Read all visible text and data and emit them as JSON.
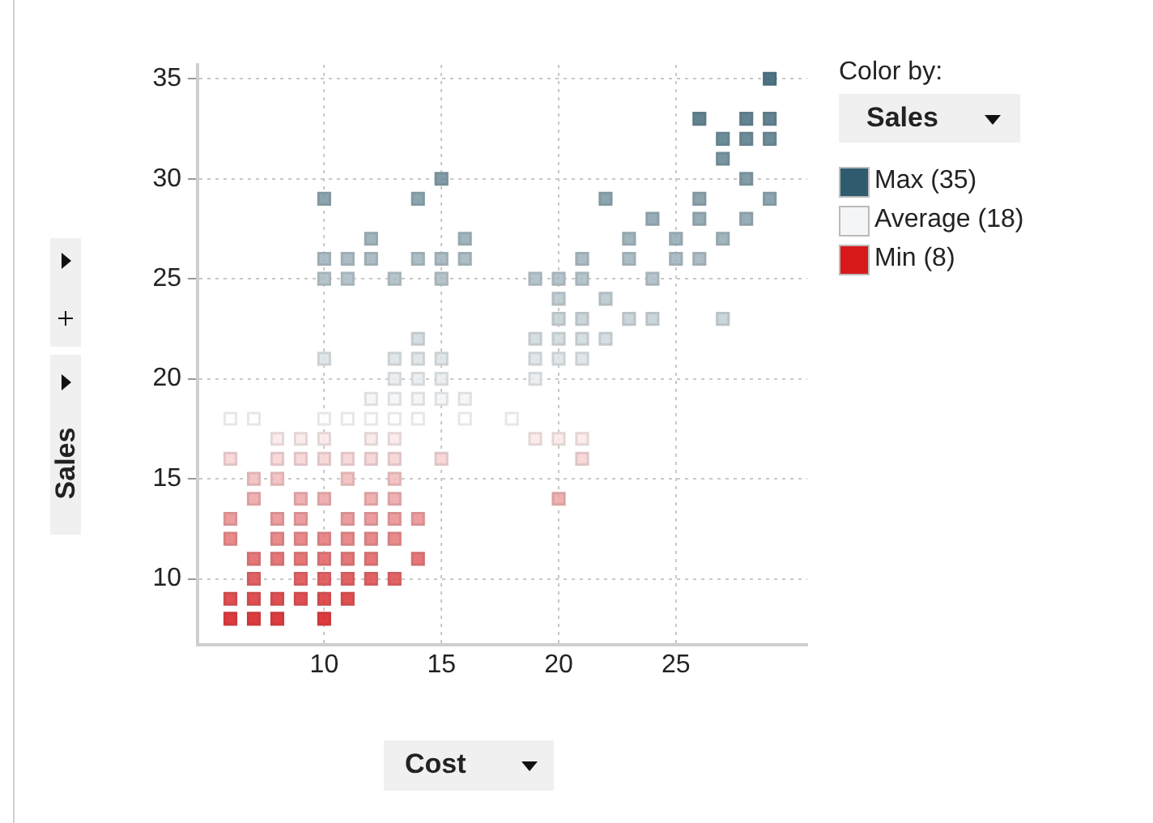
{
  "chart_data": {
    "type": "scatter",
    "xlabel": "Cost",
    "ylabel": "Sales",
    "legend_title": "Color by:",
    "clabel": "Sales",
    "marker": "square",
    "grid": true,
    "annotations": [
      "Max (35)",
      "Average (18)",
      "Min (8)"
    ],
    "xlim": [
      4.6,
      30.6
    ],
    "xticks": [
      10,
      15,
      20,
      25
    ],
    "ylim": [
      6.7,
      35.7
    ],
    "yticks": [
      10,
      15,
      20,
      25,
      30,
      35
    ],
    "x": [
      29,
      26,
      28,
      29,
      27,
      28,
      29,
      27,
      15,
      28,
      10,
      14,
      22,
      26,
      29,
      24,
      26,
      28,
      12,
      16,
      23,
      25,
      27,
      10,
      11,
      12,
      14,
      15,
      16,
      21,
      23,
      25,
      26,
      10,
      11,
      13,
      15,
      19,
      20,
      21,
      24,
      20,
      22,
      20,
      21,
      23,
      24,
      27,
      14,
      19,
      20,
      21,
      22,
      10,
      13,
      14,
      15,
      19,
      20,
      21,
      13,
      14,
      15,
      19,
      12,
      13,
      14,
      15,
      16,
      6,
      7,
      10,
      11,
      12,
      13,
      14,
      16,
      18,
      8,
      9,
      10,
      12,
      13,
      19,
      20,
      21,
      6,
      8,
      9,
      10,
      11,
      12,
      13,
      15,
      21,
      7,
      8,
      11,
      13,
      7,
      9,
      10,
      12,
      13,
      20,
      6,
      8,
      9,
      11,
      12,
      13,
      14,
      6,
      8,
      9,
      10,
      11,
      12,
      13,
      7,
      8,
      9,
      10,
      11,
      12,
      14,
      7,
      9,
      10,
      11,
      12,
      13,
      6,
      7,
      8,
      9,
      10,
      11,
      6,
      7,
      8,
      10
    ],
    "values": [
      35,
      33,
      33,
      33,
      32,
      32,
      32,
      31,
      30,
      30,
      29,
      29,
      29,
      29,
      29,
      28,
      28,
      28,
      27,
      27,
      27,
      27,
      27,
      26,
      26,
      26,
      26,
      26,
      26,
      26,
      26,
      26,
      26,
      25,
      25,
      25,
      25,
      25,
      25,
      25,
      25,
      24,
      24,
      23,
      23,
      23,
      23,
      23,
      22,
      22,
      22,
      22,
      22,
      21,
      21,
      21,
      21,
      21,
      21,
      21,
      20,
      20,
      20,
      20,
      19,
      19,
      19,
      19,
      19,
      18,
      18,
      18,
      18,
      18,
      18,
      18,
      18,
      18,
      17,
      17,
      17,
      17,
      17,
      17,
      17,
      17,
      16,
      16,
      16,
      16,
      16,
      16,
      16,
      16,
      16,
      15,
      15,
      15,
      15,
      14,
      14,
      14,
      14,
      14,
      14,
      13,
      13,
      13,
      13,
      13,
      13,
      13,
      12,
      12,
      12,
      12,
      12,
      12,
      12,
      11,
      11,
      11,
      11,
      11,
      11,
      11,
      10,
      10,
      10,
      10,
      10,
      10,
      9,
      9,
      9,
      9,
      9,
      9,
      8,
      8,
      8,
      8
    ],
    "colors": [
      "#2f5b6e",
      "#476e7f",
      "#476e7f",
      "#476e7f",
      "#547888",
      "#547888",
      "#547888",
      "#608290",
      "#6c8b99",
      "#6c8b99",
      "#7895a1",
      "#7895a1",
      "#7895a1",
      "#7895a1",
      "#7895a1",
      "#859faa",
      "#859faa",
      "#859faa",
      "#91a8b2",
      "#91a8b2",
      "#91a8b2",
      "#91a8b2",
      "#91a8b2",
      "#9db2bb",
      "#9db2bb",
      "#9db2bb",
      "#9db2bb",
      "#9db2bb",
      "#9db2bb",
      "#9db2bb",
      "#9db2bb",
      "#9db2bb",
      "#9db2bb",
      "#a9bbc3",
      "#a9bbc3",
      "#a9bbc3",
      "#a9bbc3",
      "#a9bbc3",
      "#a9bbc3",
      "#a9bbc3",
      "#a9bbc3",
      "#b6c5cc",
      "#b6c5cc",
      "#c2cfd4",
      "#c2cfd4",
      "#c2cfd4",
      "#c2cfd4",
      "#c2cfd4",
      "#ced8dd",
      "#ced8dd",
      "#ced8dd",
      "#ced8dd",
      "#ced8dd",
      "#dae2e5",
      "#dae2e5",
      "#dae2e5",
      "#dae2e5",
      "#dae2e5",
      "#dae2e5",
      "#dae2e5",
      "#e7ecee",
      "#e7ecee",
      "#e7ecee",
      "#e7ecee",
      "#f3f5f6",
      "#f3f5f6",
      "#f3f5f6",
      "#f3f5f6",
      "#f3f5f6",
      "#ffffff",
      "#ffffff",
      "#ffffff",
      "#ffffff",
      "#ffffff",
      "#ffffff",
      "#ffffff",
      "#ffffff",
      "#ffffff",
      "#fbe8e8",
      "#fbe8e8",
      "#fbe8e8",
      "#fbe8e8",
      "#fbe8e8",
      "#fbe8e8",
      "#fbe8e8",
      "#fbe8e8",
      "#f7d1d2",
      "#f7d1d2",
      "#f7d1d2",
      "#f7d1d2",
      "#f7d1d2",
      "#f7d1d2",
      "#f7d1d2",
      "#f7d1d2",
      "#f7d1d2",
      "#f3babb",
      "#f3babb",
      "#f3babb",
      "#f3babb",
      "#efa3a4",
      "#efa3a4",
      "#efa3a4",
      "#efa3a4",
      "#efa3a4",
      "#efa3a4",
      "#eb8c8e",
      "#eb8c8e",
      "#eb8c8e",
      "#eb8c8e",
      "#eb8c8e",
      "#eb8c8e",
      "#eb8c8e",
      "#e77577",
      "#e77577",
      "#e77577",
      "#e77577",
      "#e77577",
      "#e77577",
      "#e77577",
      "#e35e60",
      "#e35e60",
      "#e35e60",
      "#e35e60",
      "#e35e60",
      "#e35e60",
      "#e35e60",
      "#df4749",
      "#df4749",
      "#df4749",
      "#df4749",
      "#df4749",
      "#df4749",
      "#db3033",
      "#db3033",
      "#db3033",
      "#db3033",
      "#db3033",
      "#db3033",
      "#d7191c",
      "#d7191c",
      "#d7191c",
      "#d7191c"
    ]
  }
}
